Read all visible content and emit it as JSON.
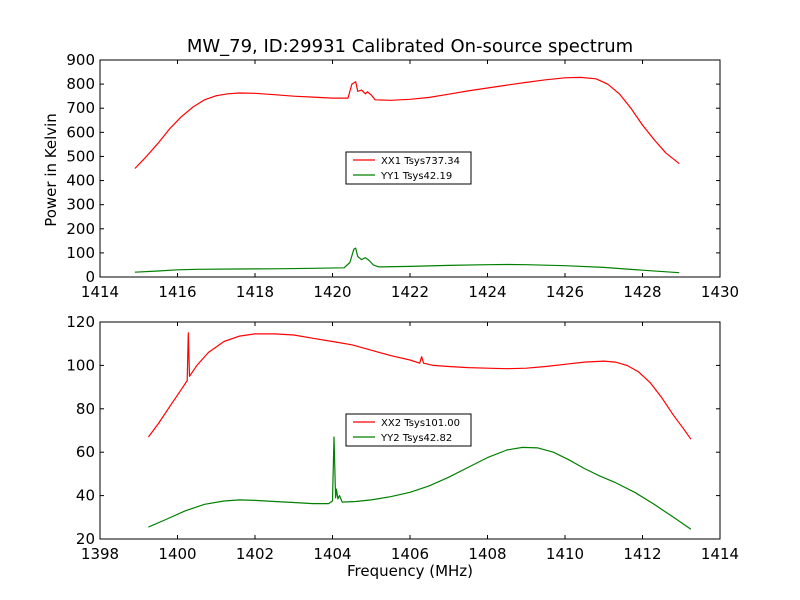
{
  "chart_data": [
    {
      "type": "line",
      "title": "MW_79, ID:29931 Calibrated On-source spectrum",
      "xlabel": "",
      "ylabel": "Power in Kelvin",
      "xlim": [
        1414,
        1430
      ],
      "ylim": [
        0,
        900
      ],
      "xticks": [
        1414,
        1416,
        1418,
        1420,
        1422,
        1424,
        1426,
        1428,
        1430
      ],
      "yticks": [
        0,
        100,
        200,
        300,
        400,
        500,
        600,
        700,
        800,
        900
      ],
      "grid": false,
      "legend_position": "center",
      "series": [
        {
          "name": "XX1 Tsys737.34",
          "color": "#ff0000",
          "points": [
            [
              1414.9,
              450
            ],
            [
              1415.2,
              500
            ],
            [
              1415.5,
              555
            ],
            [
              1415.8,
              615
            ],
            [
              1416.1,
              665
            ],
            [
              1416.4,
              705
            ],
            [
              1416.7,
              735
            ],
            [
              1417.0,
              752
            ],
            [
              1417.3,
              760
            ],
            [
              1417.6,
              763
            ],
            [
              1418.0,
              762
            ],
            [
              1418.5,
              756
            ],
            [
              1419.0,
              750
            ],
            [
              1419.5,
              746
            ],
            [
              1420.0,
              742
            ],
            [
              1420.4,
              742
            ],
            [
              1420.5,
              800
            ],
            [
              1420.6,
              810
            ],
            [
              1420.65,
              770
            ],
            [
              1420.75,
              775
            ],
            [
              1420.85,
              760
            ],
            [
              1420.9,
              768
            ],
            [
              1421.0,
              755
            ],
            [
              1421.1,
              735
            ],
            [
              1421.5,
              733
            ],
            [
              1422.0,
              737
            ],
            [
              1422.5,
              745
            ],
            [
              1423.0,
              758
            ],
            [
              1423.5,
              772
            ],
            [
              1424.0,
              784
            ],
            [
              1424.5,
              796
            ],
            [
              1425.0,
              807
            ],
            [
              1425.5,
              818
            ],
            [
              1426.0,
              826
            ],
            [
              1426.4,
              828
            ],
            [
              1426.8,
              822
            ],
            [
              1427.1,
              800
            ],
            [
              1427.4,
              760
            ],
            [
              1427.7,
              700
            ],
            [
              1428.0,
              630
            ],
            [
              1428.3,
              570
            ],
            [
              1428.6,
              515
            ],
            [
              1428.95,
              470
            ]
          ]
        },
        {
          "name": "YY1 Tsys42.19",
          "color": "#008000",
          "points": [
            [
              1414.9,
              20
            ],
            [
              1415.5,
              25
            ],
            [
              1416.0,
              30
            ],
            [
              1416.5,
              32
            ],
            [
              1417.5,
              33
            ],
            [
              1418.5,
              34
            ],
            [
              1419.5,
              36
            ],
            [
              1420.3,
              38
            ],
            [
              1420.45,
              60
            ],
            [
              1420.55,
              115
            ],
            [
              1420.6,
              120
            ],
            [
              1420.65,
              85
            ],
            [
              1420.75,
              72
            ],
            [
              1420.85,
              80
            ],
            [
              1420.95,
              68
            ],
            [
              1421.05,
              50
            ],
            [
              1421.2,
              42
            ],
            [
              1422.0,
              44
            ],
            [
              1423.0,
              48
            ],
            [
              1424.0,
              51
            ],
            [
              1424.5,
              52
            ],
            [
              1425.0,
              51
            ],
            [
              1426.0,
              47
            ],
            [
              1427.0,
              40
            ],
            [
              1428.0,
              28
            ],
            [
              1428.95,
              18
            ]
          ]
        }
      ]
    },
    {
      "type": "line",
      "title": "",
      "xlabel": "Frequency (MHz)",
      "ylabel": "",
      "xlim": [
        1398,
        1414
      ],
      "ylim": [
        20,
        120
      ],
      "xticks": [
        1398,
        1400,
        1402,
        1404,
        1406,
        1408,
        1410,
        1412,
        1414
      ],
      "yticks": [
        20,
        40,
        60,
        80,
        100,
        120
      ],
      "grid": false,
      "legend_position": "center",
      "series": [
        {
          "name": "XX2 Tsys101.00",
          "color": "#ff0000",
          "points": [
            [
              1399.25,
              67
            ],
            [
              1399.5,
              73
            ],
            [
              1399.8,
              81
            ],
            [
              1400.1,
              89
            ],
            [
              1400.25,
              93
            ],
            [
              1400.28,
              115
            ],
            [
              1400.31,
              95
            ],
            [
              1400.5,
              100
            ],
            [
              1400.8,
              106
            ],
            [
              1401.2,
              111
            ],
            [
              1401.6,
              113.5
            ],
            [
              1402.0,
              114.5
            ],
            [
              1402.5,
              114.5
            ],
            [
              1403.0,
              114
            ],
            [
              1403.5,
              112.5
            ],
            [
              1404.0,
              111
            ],
            [
              1404.5,
              109.5
            ],
            [
              1405.0,
              107
            ],
            [
              1405.5,
              104.5
            ],
            [
              1406.0,
              102.5
            ],
            [
              1406.25,
              101
            ],
            [
              1406.3,
              104
            ],
            [
              1406.35,
              101
            ],
            [
              1406.6,
              100
            ],
            [
              1407.0,
              99.5
            ],
            [
              1407.5,
              99
            ],
            [
              1408.0,
              98.7
            ],
            [
              1408.5,
              98.5
            ],
            [
              1409.0,
              98.7
            ],
            [
              1409.5,
              99.5
            ],
            [
              1410.0,
              100.5
            ],
            [
              1410.5,
              101.5
            ],
            [
              1411.0,
              102
            ],
            [
              1411.3,
              101.5
            ],
            [
              1411.6,
              100
            ],
            [
              1411.9,
              97
            ],
            [
              1412.2,
              92
            ],
            [
              1412.5,
              85
            ],
            [
              1412.8,
              77
            ],
            [
              1413.05,
              71
            ],
            [
              1413.25,
              66
            ]
          ]
        },
        {
          "name": "YY2 Tsys42.82",
          "color": "#008000",
          "points": [
            [
              1399.25,
              25.5
            ],
            [
              1399.7,
              29
            ],
            [
              1400.2,
              33
            ],
            [
              1400.7,
              36
            ],
            [
              1401.2,
              37.5
            ],
            [
              1401.6,
              38
            ],
            [
              1402.0,
              37.8
            ],
            [
              1402.5,
              37.3
            ],
            [
              1403.0,
              36.8
            ],
            [
              1403.5,
              36.3
            ],
            [
              1403.9,
              36.3
            ],
            [
              1404.0,
              37.5
            ],
            [
              1404.04,
              67
            ],
            [
              1404.08,
              39
            ],
            [
              1404.1,
              43
            ],
            [
              1404.14,
              38.5
            ],
            [
              1404.18,
              40
            ],
            [
              1404.25,
              37
            ],
            [
              1404.6,
              37.3
            ],
            [
              1405.0,
              38
            ],
            [
              1405.5,
              39.5
            ],
            [
              1406.0,
              41.5
            ],
            [
              1406.5,
              44.5
            ],
            [
              1407.0,
              48.5
            ],
            [
              1407.5,
              53
            ],
            [
              1408.0,
              57.5
            ],
            [
              1408.5,
              61
            ],
            [
              1408.9,
              62.2
            ],
            [
              1409.3,
              62
            ],
            [
              1409.7,
              60
            ],
            [
              1410.1,
              56.5
            ],
            [
              1410.5,
              52.5
            ],
            [
              1410.9,
              49
            ],
            [
              1411.3,
              46
            ],
            [
              1411.8,
              41.5
            ],
            [
              1412.3,
              36
            ],
            [
              1412.8,
              30
            ],
            [
              1413.25,
              24.5
            ]
          ]
        }
      ]
    }
  ]
}
